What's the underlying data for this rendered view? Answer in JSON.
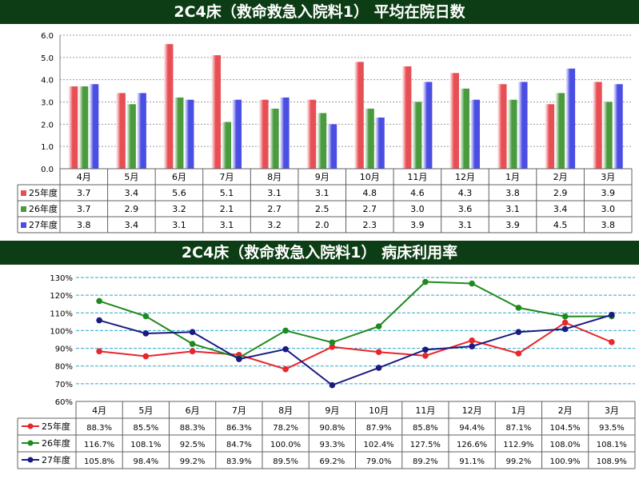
{
  "chart_data": [
    {
      "type": "bar",
      "title": "2C4床（救命救急入院料1） 平均在院日数",
      "categories": [
        "4月",
        "5月",
        "6月",
        "7月",
        "8月",
        "9月",
        "10月",
        "11月",
        "12月",
        "1月",
        "2月",
        "3月"
      ],
      "ylim": [
        0,
        6
      ],
      "yticks": [
        "0.0",
        "1.0",
        "2.0",
        "3.0",
        "4.0",
        "5.0",
        "6.0"
      ],
      "grid": true,
      "legend": "table",
      "series": [
        {
          "name": "25年度",
          "color": "#e84f55",
          "values": [
            3.7,
            3.4,
            5.6,
            5.1,
            3.1,
            3.1,
            4.8,
            4.6,
            4.3,
            3.8,
            2.9,
            3.9
          ],
          "labels": [
            "3.7",
            "3.4",
            "5.6",
            "5.1",
            "3.1",
            "3.1",
            "4.8",
            "4.6",
            "4.3",
            "3.8",
            "2.9",
            "3.9"
          ]
        },
        {
          "name": "26年度",
          "color": "#4a9a3e",
          "values": [
            3.7,
            2.9,
            3.2,
            2.1,
            2.7,
            2.5,
            2.7,
            3.0,
            3.6,
            3.1,
            3.4,
            3.0
          ],
          "labels": [
            "3.7",
            "2.9",
            "3.2",
            "2.1",
            "2.7",
            "2.5",
            "2.7",
            "3.0",
            "3.6",
            "3.1",
            "3.4",
            "3.0"
          ]
        },
        {
          "name": "27年度",
          "color": "#4b4ee3",
          "values": [
            3.8,
            3.4,
            3.1,
            3.1,
            3.2,
            2.0,
            2.3,
            3.9,
            3.1,
            3.9,
            4.5,
            3.8
          ],
          "labels": [
            "3.8",
            "3.4",
            "3.1",
            "3.1",
            "3.2",
            "2.0",
            "2.3",
            "3.9",
            "3.1",
            "3.9",
            "4.5",
            "3.8"
          ]
        }
      ]
    },
    {
      "type": "line",
      "title": "2C4床（救命救急入院料1） 病床利用率",
      "categories": [
        "4月",
        "5月",
        "6月",
        "7月",
        "8月",
        "9月",
        "10月",
        "11月",
        "12月",
        "1月",
        "2月",
        "3月"
      ],
      "ylim": [
        60,
        130
      ],
      "yticks": [
        "60%",
        "70%",
        "80%",
        "90%",
        "100%",
        "110%",
        "120%",
        "130%"
      ],
      "grid": true,
      "legend": "table",
      "series": [
        {
          "name": "25年度",
          "color": "#e8262b",
          "values": [
            88.3,
            85.5,
            88.3,
            86.3,
            78.2,
            90.8,
            87.9,
            85.8,
            94.4,
            87.1,
            104.5,
            93.5
          ],
          "labels": [
            "88.3%",
            "85.5%",
            "88.3%",
            "86.3%",
            "78.2%",
            "90.8%",
            "87.9%",
            "85.8%",
            "94.4%",
            "87.1%",
            "104.5%",
            "93.5%"
          ]
        },
        {
          "name": "26年度",
          "color": "#1e8a1e",
          "values": [
            116.7,
            108.1,
            92.5,
            84.7,
            100.0,
            93.3,
            102.4,
            127.5,
            126.6,
            112.9,
            108.0,
            108.1
          ],
          "labels": [
            "116.7%",
            "108.1%",
            "92.5%",
            "84.7%",
            "100.0%",
            "93.3%",
            "102.4%",
            "127.5%",
            "126.6%",
            "112.9%",
            "108.0%",
            "108.1%"
          ]
        },
        {
          "name": "27年度",
          "color": "#1a1a80",
          "values": [
            105.8,
            98.4,
            99.2,
            83.9,
            89.5,
            69.2,
            79.0,
            89.2,
            91.1,
            99.2,
            100.9,
            108.9
          ],
          "labels": [
            "105.8%",
            "98.4%",
            "99.2%",
            "83.9%",
            "89.5%",
            "69.2%",
            "79.0%",
            "89.2%",
            "91.1%",
            "99.2%",
            "100.9%",
            "108.9%"
          ]
        }
      ]
    }
  ]
}
